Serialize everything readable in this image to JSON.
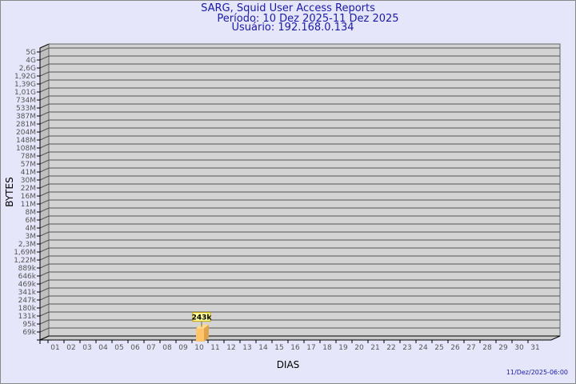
{
  "header": {
    "title": "SARG, Squid User Access Reports",
    "period": "Período: 10 Dez 2025-11 Dez 2025",
    "user": "Usuário: 192.168.0.134"
  },
  "footer": {
    "timestamp": "11/Dez/2025-06:00"
  },
  "chart_data": {
    "type": "bar",
    "title": "SARG, Squid User Access Reports",
    "xlabel": "DIAS",
    "ylabel": "BYTES",
    "yscale": "log",
    "grid": true,
    "y_ticks": [
      "5G",
      "4G",
      "2,6G",
      "1,92G",
      "1,39G",
      "1,01G",
      "734M",
      "533M",
      "387M",
      "281M",
      "204M",
      "148M",
      "108M",
      "78M",
      "57M",
      "41M",
      "30M",
      "22M",
      "16M",
      "11M",
      "8M",
      "6M",
      "4M",
      "3M",
      "2,3M",
      "1,69M",
      "1,22M",
      "889k",
      "646k",
      "469k",
      "341k",
      "247k",
      "180k",
      "131k",
      "95k",
      "69k"
    ],
    "categories": [
      "01",
      "02",
      "03",
      "04",
      "05",
      "06",
      "07",
      "08",
      "09",
      "10",
      "11",
      "12",
      "13",
      "14",
      "15",
      "16",
      "17",
      "18",
      "19",
      "20",
      "21",
      "22",
      "23",
      "24",
      "25",
      "26",
      "27",
      "28",
      "29",
      "30",
      "31"
    ],
    "bars": [
      {
        "day": "10",
        "value": 243000,
        "label": "243k"
      }
    ],
    "colors": {
      "bar": "#ffc56a",
      "bar_side": "#e0a24a",
      "bar_top": "#ffdc8a",
      "wall": "#d3d3d3",
      "label_bg": "#ffff99"
    }
  }
}
